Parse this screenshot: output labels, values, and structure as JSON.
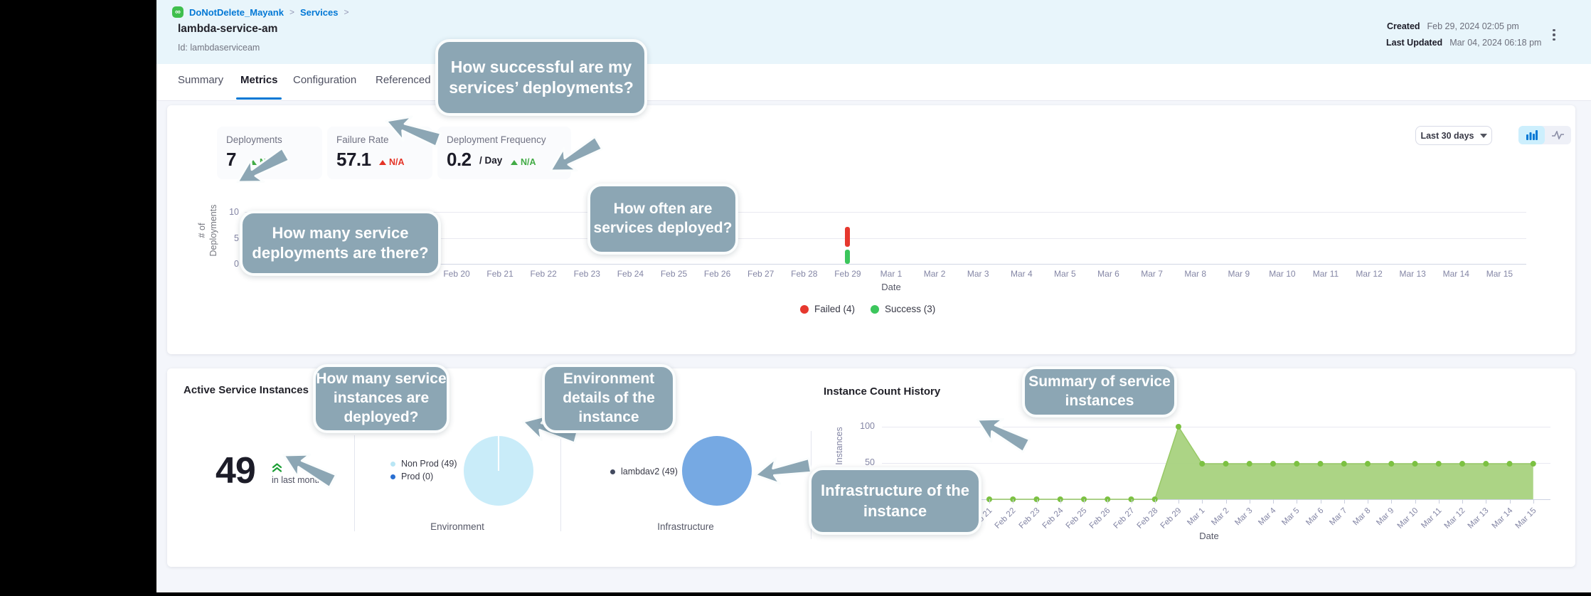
{
  "header": {
    "breadcrumb": {
      "logo_glyph": "∞",
      "project": "DoNotDelete_Mayank",
      "separator": ">",
      "section": "Services"
    },
    "title": "lambda-service-am",
    "id": "Id: lambdaserviceam",
    "created_label": "Created",
    "created_value": "Feb 29, 2024 02:05 pm",
    "updated_label": "Last Updated",
    "updated_value": "Mar 04, 2024 06:18 pm"
  },
  "tabs": [
    {
      "label": "Summary",
      "active": false
    },
    {
      "label": "Metrics",
      "active": true
    },
    {
      "label": "Configuration",
      "active": false
    },
    {
      "label": "Referenced",
      "active": false
    }
  ],
  "metrics": {
    "cards": [
      {
        "label": "Deployments",
        "value": "7",
        "suffix": "",
        "trend": "N/A",
        "trend_color": "#42ab45"
      },
      {
        "label": "Failure Rate",
        "value": "57.1",
        "suffix": "",
        "trend": "N/A",
        "trend_color": "#e43326"
      },
      {
        "label": "Deployment Frequency",
        "value": "0.2",
        "suffix": "/ Day",
        "trend": "N/A",
        "trend_color": "#42ab45"
      }
    ],
    "time_filter": "Last 30 days"
  },
  "callouts": [
    "How successful are my services’ deployments?",
    "How many service deployments are there?",
    "How often are services deployed?",
    "How many service instances are deployed?",
    "Environment details of the instance",
    "Summary of service instances",
    "Infrastructure of the instance"
  ],
  "chart_data": [
    {
      "type": "bar",
      "title": "",
      "xlabel": "Date",
      "ylabel": "# of Deployments",
      "yticks": [
        10,
        5,
        0
      ],
      "ylim": [
        0,
        10
      ],
      "legend_position": "bottom-center",
      "categories": [
        "Feb 20",
        "Feb 21",
        "Feb 22",
        "Feb 23",
        "Feb 24",
        "Feb 25",
        "Feb 26",
        "Feb 27",
        "Feb 28",
        "Feb 29",
        "Mar 1",
        "Mar 2",
        "Mar 3",
        "Mar 4",
        "Mar 5",
        "Mar 6",
        "Mar 7",
        "Mar 8",
        "Mar 9",
        "Mar 10",
        "Mar 11",
        "Mar 12",
        "Mar 13",
        "Mar 14",
        "Mar 15"
      ],
      "series": [
        {
          "name": "Failed (4)",
          "color": "#e6382e",
          "values": [
            0,
            0,
            0,
            0,
            0,
            0,
            0,
            0,
            0,
            4,
            0,
            0,
            0,
            0,
            0,
            0,
            0,
            0,
            0,
            0,
            0,
            0,
            0,
            0,
            0
          ]
        },
        {
          "name": "Success (3)",
          "color": "#3cc65c",
          "values": [
            0,
            0,
            0,
            0,
            0,
            0,
            0,
            0,
            0,
            3,
            0,
            0,
            0,
            0,
            0,
            0,
            0,
            0,
            0,
            0,
            0,
            0,
            0,
            0,
            0
          ]
        }
      ]
    },
    {
      "type": "area",
      "title": "Instance Count History",
      "xlabel": "Date",
      "ylabel": "Instances",
      "yticks": [
        100,
        50
      ],
      "ylim": [
        0,
        100
      ],
      "fill_color": "#a8d27e",
      "point_color": "#7cc142",
      "categories": [
        "Feb 21",
        "Feb 22",
        "Feb 23",
        "Feb 24",
        "Feb 25",
        "Feb 26",
        "Feb 27",
        "Feb 28",
        "Feb 29",
        "Mar 1",
        "Mar 2",
        "Mar 3",
        "Mar 4",
        "Mar 5",
        "Mar 6",
        "Mar 7",
        "Mar 8",
        "Mar 9",
        "Mar 10",
        "Mar 11",
        "Mar 12",
        "Mar 13",
        "Mar 14",
        "Mar 15"
      ],
      "values": [
        0,
        0,
        0,
        0,
        0,
        0,
        0,
        0,
        100,
        49,
        49,
        49,
        49,
        49,
        49,
        49,
        49,
        49,
        49,
        49,
        49,
        49,
        49,
        49
      ]
    }
  ],
  "instances": {
    "title": "Active Service Instances",
    "count": "49",
    "count_caption": "in last month",
    "environment": {
      "label": "Environment",
      "pie_color": "#c9ecf9",
      "legend": [
        {
          "label": "Non Prod (49)",
          "color": "#b9e6f5"
        },
        {
          "label": "Prod (0)",
          "color": "#2a6fd1"
        }
      ]
    },
    "infrastructure": {
      "label": "Infrastructure",
      "pie_color": "#76a9e3",
      "legend": [
        {
          "label": "lambdav2 (49)",
          "color": "#434a5f"
        }
      ]
    },
    "history_title": "Instance Count History"
  }
}
